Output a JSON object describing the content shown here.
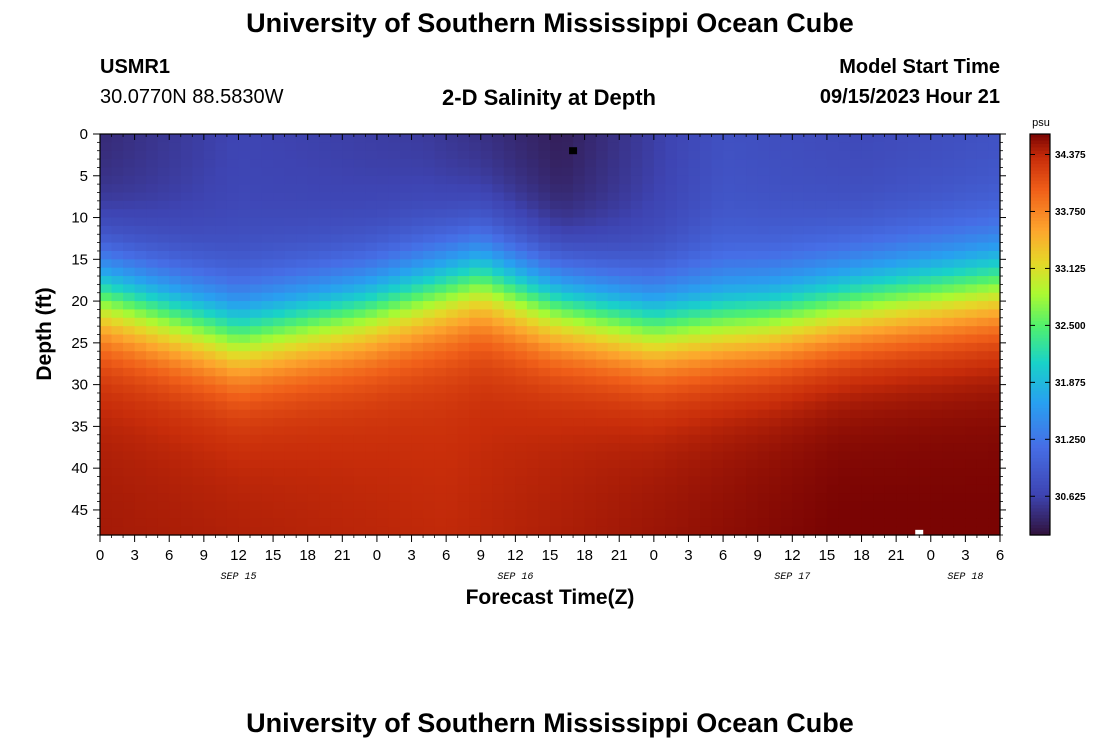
{
  "header": {
    "title": "University of Southern Mississippi Ocean Cube",
    "station_id": "USMR1",
    "station_coords": "30.0770N  88.5830W",
    "subtitle": "2-D Salinity at Depth",
    "model_start_label": "Model Start Time",
    "model_start_value": "09/15/2023 Hour 21"
  },
  "footer": {
    "title": "University of Southern Mississippi Ocean Cube"
  },
  "chart_data": {
    "type": "heatmap",
    "title": "2-D Salinity at Depth",
    "xlabel": "Forecast Time(Z)",
    "ylabel": "Depth (ft)",
    "x_range_hours": [
      0,
      78
    ],
    "x_start_hour_of_day": 0,
    "x_tick_step_hours": 3,
    "x_tick_labels": [
      "0",
      "3",
      "6",
      "9",
      "12",
      "15",
      "18",
      "21",
      "0",
      "3",
      "6",
      "9",
      "12",
      "15",
      "18",
      "21",
      "0",
      "3",
      "6",
      "9",
      "12",
      "15",
      "18",
      "21",
      "0",
      "3",
      "6"
    ],
    "date_labels": [
      {
        "label": "SEP 15",
        "hour": 12
      },
      {
        "label": "SEP 16",
        "hour": 36
      },
      {
        "label": "SEP 17",
        "hour": 60
      },
      {
        "label": "SEP 18",
        "hour": 75
      }
    ],
    "y_range_ft": [
      0,
      48
    ],
    "y_ticks": [
      0,
      5,
      10,
      15,
      20,
      25,
      30,
      35,
      40,
      45
    ],
    "colorbar": {
      "unit": "psu",
      "min": 30.2,
      "max": 34.6,
      "ticks": [
        30.625,
        31.25,
        31.875,
        32.5,
        33.125,
        33.75,
        34.375
      ],
      "tick_labels": [
        "30.625",
        "31.250",
        "31.875",
        "32.500",
        "33.125",
        "33.750",
        "34.375"
      ]
    },
    "halocline_depth_ft": [
      {
        "hour": 0,
        "depth": 19
      },
      {
        "hour": 12,
        "depth": 24
      },
      {
        "hour": 23,
        "depth": 21
      },
      {
        "hour": 33,
        "depth": 17
      },
      {
        "hour": 39,
        "depth": 20
      },
      {
        "hour": 48,
        "depth": 23
      },
      {
        "hour": 58,
        "depth": 22
      },
      {
        "hour": 66,
        "depth": 20
      },
      {
        "hour": 78,
        "depth": 18
      }
    ],
    "surface_salinity_psu": [
      {
        "hour": 0,
        "value": 30.4
      },
      {
        "hour": 12,
        "value": 30.65
      },
      {
        "hour": 28,
        "value": 30.55
      },
      {
        "hour": 40,
        "value": 30.3
      },
      {
        "hour": 54,
        "value": 30.8
      },
      {
        "hour": 66,
        "value": 30.7
      },
      {
        "hour": 78,
        "value": 30.8
      }
    ],
    "bottom_salinity_psu": [
      {
        "hour": 0,
        "value": 34.4
      },
      {
        "hour": 30,
        "value": 34.3
      },
      {
        "hour": 44,
        "value": 34.4
      },
      {
        "hour": 64,
        "value": 34.55
      },
      {
        "hour": 78,
        "value": 34.55
      }
    ],
    "markers": [
      {
        "hour": 41,
        "depth_ft": 2,
        "color": "#000000"
      },
      {
        "hour": 71,
        "depth_ft": 47.8,
        "color": "#ffffff"
      }
    ]
  }
}
